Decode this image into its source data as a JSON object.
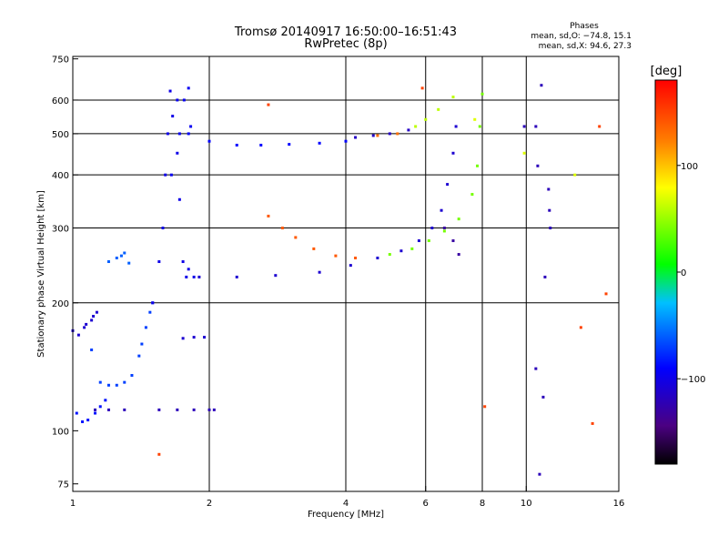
{
  "chart_data": {
    "type": "scatter",
    "title": "Tromsø 20140917 16:50:00–16:51:43",
    "subtitle": "RwPretec (8p)",
    "phases_box": {
      "title": "Phases",
      "line_o": "mean, sd,O: −74.8, 15.1",
      "line_x": "mean, sd,X:  94.6, 27.3"
    },
    "xlabel": "Frequency [MHz]",
    "ylabel": "Stationary phase Virtual Height [km]",
    "x_scale": "log",
    "y_scale": "log",
    "xlim": [
      1,
      16
    ],
    "ylim": [
      72,
      760
    ],
    "x_ticks": [
      {
        "value": 1,
        "label": "1"
      },
      {
        "value": 2,
        "label": "2"
      },
      {
        "value": 4,
        "label": "4"
      },
      {
        "value": 6,
        "label": "6"
      },
      {
        "value": 8,
        "label": "8"
      },
      {
        "value": 10,
        "label": "10"
      },
      {
        "value": 16,
        "label": "16"
      }
    ],
    "x_grid": [
      2,
      4,
      6,
      8,
      10
    ],
    "y_ticks": [
      {
        "value": 75,
        "label": "75"
      },
      {
        "value": 100,
        "label": "100"
      },
      {
        "value": 200,
        "label": "200"
      },
      {
        "value": 300,
        "label": "300"
      },
      {
        "value": 400,
        "label": "400"
      },
      {
        "value": 500,
        "label": "500"
      },
      {
        "value": 600,
        "label": "600"
      },
      {
        "value": 750,
        "label": "750"
      }
    ],
    "y_grid": [
      200,
      300,
      400,
      500,
      600
    ],
    "colorbar": {
      "label": "[deg]",
      "range": [
        -180,
        180
      ],
      "ticks": [
        {
          "value": 100,
          "label": "100"
        },
        {
          "value": 0,
          "label": "0"
        },
        {
          "value": -100,
          "label": "−100"
        }
      ]
    },
    "series": [
      {
        "phase": -110,
        "points": [
          [
            1.0,
            172
          ],
          [
            1.03,
            168
          ],
          [
            1.06,
            175
          ],
          [
            1.1,
            182
          ],
          [
            1.13,
            190
          ],
          [
            1.07,
            178
          ],
          [
            1.11,
            186
          ]
        ]
      },
      {
        "phase": -85,
        "points": [
          [
            1.02,
            110
          ],
          [
            1.05,
            105
          ],
          [
            1.08,
            106
          ],
          [
            1.12,
            110
          ],
          [
            1.15,
            114
          ],
          [
            1.18,
            118
          ]
        ]
      },
      {
        "phase": -70,
        "points": [
          [
            1.1,
            155
          ],
          [
            1.15,
            130
          ],
          [
            1.25,
            128
          ],
          [
            1.35,
            135
          ],
          [
            1.4,
            150
          ],
          [
            1.45,
            175
          ],
          [
            1.5,
            200
          ],
          [
            1.2,
            128
          ],
          [
            1.3,
            130
          ],
          [
            1.42,
            160
          ],
          [
            1.48,
            190
          ]
        ]
      },
      {
        "phase": -120,
        "points": [
          [
            1.12,
            112
          ],
          [
            1.2,
            112
          ],
          [
            1.3,
            112
          ],
          [
            1.55,
            112
          ],
          [
            1.7,
            112
          ],
          [
            1.85,
            112
          ],
          [
            2.0,
            112
          ],
          [
            2.05,
            112
          ]
        ]
      },
      {
        "phase": -60,
        "points": [
          [
            1.2,
            250
          ],
          [
            1.25,
            255
          ],
          [
            1.3,
            262
          ],
          [
            1.33,
            248
          ],
          [
            1.28,
            258
          ]
        ]
      },
      {
        "phase": -100,
        "points": [
          [
            1.5,
            200
          ],
          [
            1.55,
            250
          ],
          [
            1.58,
            300
          ],
          [
            1.6,
            400
          ],
          [
            1.62,
            500
          ],
          [
            1.64,
            630
          ],
          [
            1.66,
            550
          ],
          [
            1.7,
            450
          ],
          [
            1.72,
            350
          ],
          [
            1.75,
            250
          ],
          [
            1.78,
            230
          ],
          [
            1.8,
            240
          ],
          [
            1.85,
            230
          ]
        ]
      },
      {
        "phase": -95,
        "points": [
          [
            1.65,
            400
          ],
          [
            1.7,
            600
          ],
          [
            1.72,
            500
          ],
          [
            1.76,
            600
          ],
          [
            1.8,
            640
          ],
          [
            1.82,
            520
          ]
        ]
      },
      {
        "phase": -90,
        "points": [
          [
            1.8,
            500
          ],
          [
            2.0,
            480
          ],
          [
            2.3,
            470
          ],
          [
            2.6,
            470
          ],
          [
            3.0,
            472
          ],
          [
            3.5,
            475
          ],
          [
            4.0,
            480
          ]
        ]
      },
      {
        "phase": -115,
        "points": [
          [
            4.2,
            490
          ],
          [
            4.6,
            495
          ],
          [
            5.0,
            500
          ],
          [
            5.5,
            510
          ]
        ]
      },
      {
        "phase": 130,
        "points": [
          [
            4.7,
            495
          ],
          [
            5.2,
            500
          ]
        ]
      },
      {
        "phase": 60,
        "points": [
          [
            5.7,
            520
          ],
          [
            6.0,
            540
          ],
          [
            6.4,
            570
          ],
          [
            6.9,
            610
          ]
        ]
      },
      {
        "phase": -110,
        "points": [
          [
            1.9,
            230
          ],
          [
            2.3,
            230
          ],
          [
            2.8,
            232
          ],
          [
            3.5,
            236
          ],
          [
            4.1,
            245
          ],
          [
            4.7,
            255
          ],
          [
            5.3,
            265
          ],
          [
            5.8,
            280
          ],
          [
            6.2,
            300
          ],
          [
            6.5,
            330
          ],
          [
            6.7,
            380
          ],
          [
            6.9,
            450
          ],
          [
            7.0,
            520
          ]
        ]
      },
      {
        "phase": 140,
        "points": [
          [
            2.7,
            320
          ],
          [
            2.9,
            300
          ],
          [
            3.1,
            285
          ],
          [
            3.4,
            268
          ],
          [
            3.8,
            258
          ],
          [
            4.2,
            255
          ]
        ]
      },
      {
        "phase": 40,
        "points": [
          [
            5.0,
            260
          ],
          [
            5.6,
            268
          ],
          [
            6.1,
            280
          ],
          [
            6.6,
            295
          ],
          [
            7.1,
            315
          ],
          [
            7.6,
            360
          ],
          [
            7.8,
            420
          ],
          [
            7.9,
            520
          ],
          [
            8.0,
            620
          ]
        ]
      },
      {
        "phase": -130,
        "points": [
          [
            6.6,
            300
          ],
          [
            6.9,
            280
          ],
          [
            7.1,
            260
          ]
        ]
      },
      {
        "phase": -110,
        "points": [
          [
            1.75,
            165
          ],
          [
            1.85,
            166
          ],
          [
            1.95,
            166
          ]
        ]
      },
      {
        "phase": -120,
        "points": [
          [
            10.8,
            650
          ],
          [
            10.5,
            520
          ],
          [
            10.6,
            420
          ],
          [
            11.2,
            370
          ],
          [
            11.25,
            330
          ],
          [
            11.3,
            300
          ],
          [
            11.0,
            230
          ],
          [
            10.9,
            120
          ],
          [
            10.7,
            79
          ],
          [
            10.5,
            140
          ],
          [
            9.9,
            520
          ]
        ]
      },
      {
        "phase": 150,
        "points": [
          [
            2.7,
            585
          ],
          [
            1.55,
            88
          ],
          [
            8.1,
            114
          ],
          [
            5.9,
            640
          ],
          [
            14.5,
            520
          ],
          [
            13.2,
            175
          ],
          [
            14.0,
            104
          ],
          [
            15.0,
            210
          ]
        ]
      },
      {
        "phase": 70,
        "points": [
          [
            9.9,
            450
          ],
          [
            12.8,
            400
          ],
          [
            7.7,
            540
          ]
        ]
      }
    ]
  }
}
